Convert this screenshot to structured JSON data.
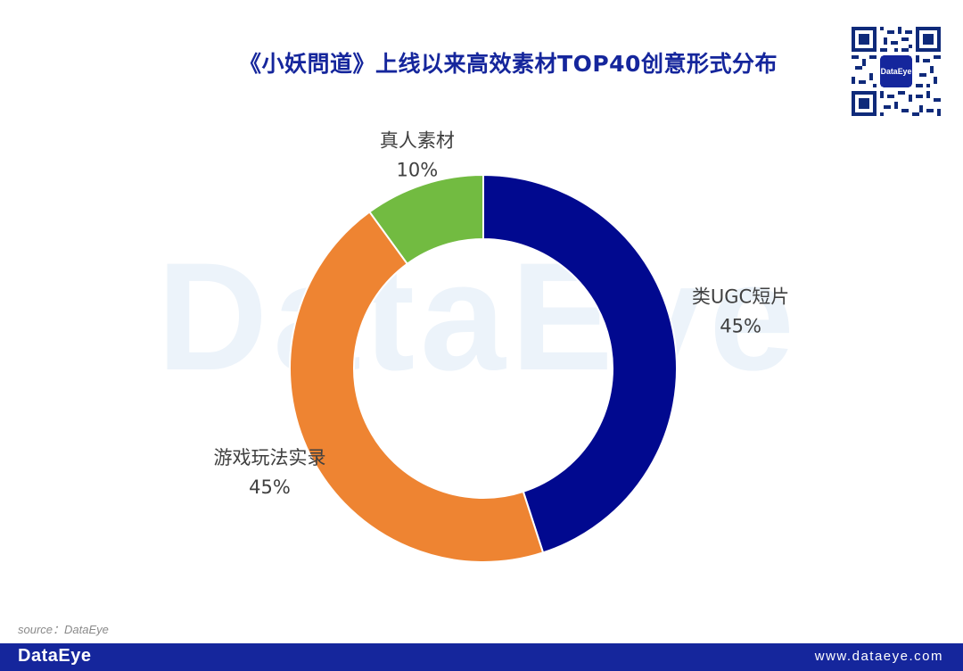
{
  "header": {
    "title": "《小妖問道》上线以来高效素材TOP40创意形式分布"
  },
  "qr": {
    "logo_text": "DataEye"
  },
  "watermark": {
    "text": "DataEye"
  },
  "chart_data": {
    "type": "pie",
    "style": "donut",
    "title": "《小妖問道》上线以来高效素材TOP40创意形式分布",
    "labels": [
      "类UGC短片",
      "游戏玩法实录",
      "真人素材"
    ],
    "values": [
      45,
      45,
      10
    ],
    "value_labels": [
      "45%",
      "45%",
      "10%"
    ],
    "unit": "%",
    "colors": [
      "#01098f",
      "#ee8432",
      "#72bb41"
    ],
    "start": "12 o'clock, clockwise"
  },
  "source": {
    "text": "source：DataEye"
  },
  "footer": {
    "brand": "DataEye",
    "url": "www.dataeye.com",
    "bg_color": "#15269c"
  }
}
